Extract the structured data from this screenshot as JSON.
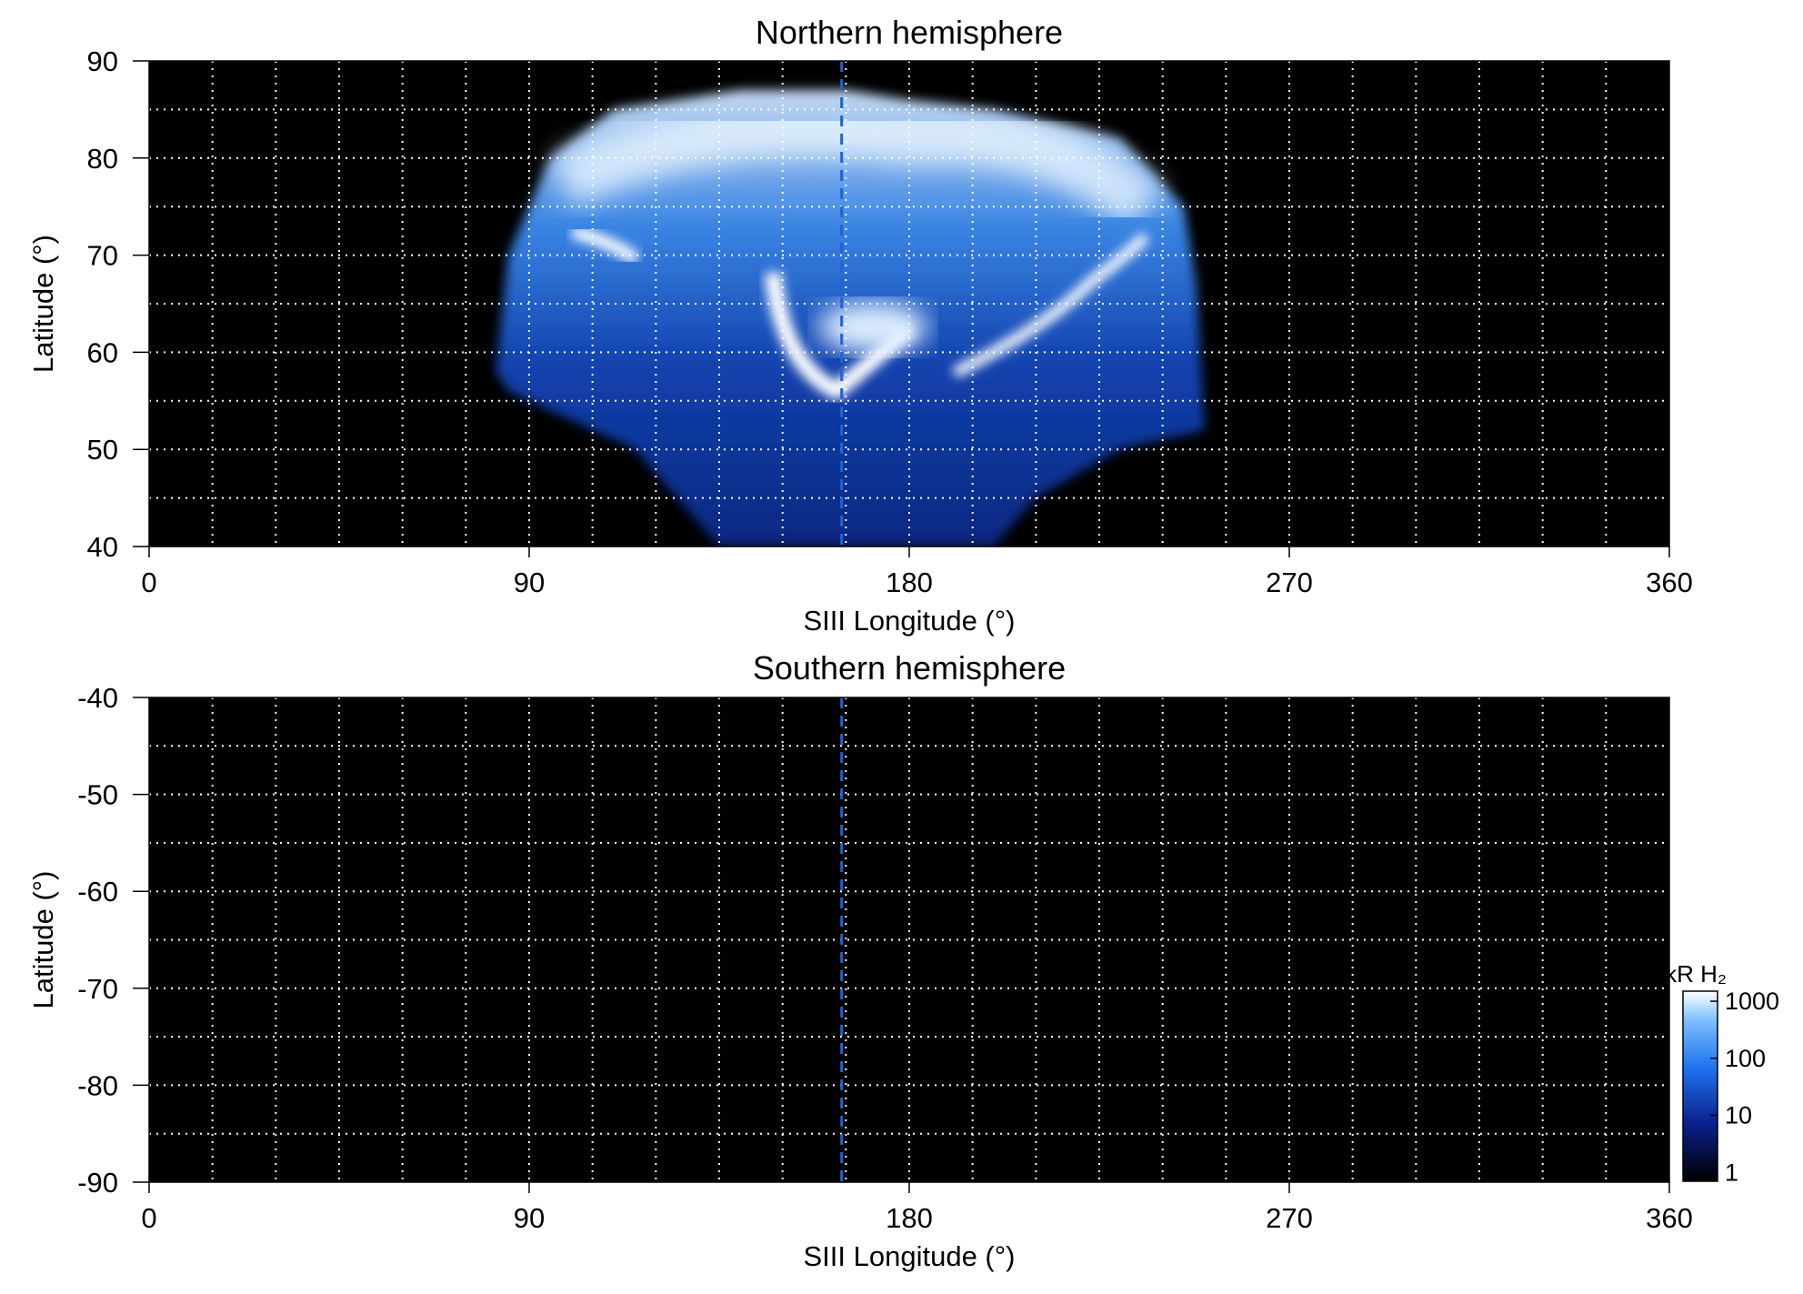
{
  "chart_data": [
    {
      "type": "heatmap",
      "title": "Northern hemisphere",
      "xlabel": "SIII Longitude (°)",
      "ylabel": "Latitude (°)",
      "xlim": [
        0,
        360
      ],
      "xticks": [
        0,
        90,
        180,
        270,
        360
      ],
      "ylim": [
        40,
        90
      ],
      "yticks": [
        40,
        50,
        60,
        70,
        80,
        90
      ],
      "xgrid": [
        15,
        30,
        45,
        60,
        75,
        90,
        105,
        120,
        135,
        150,
        165,
        180,
        195,
        210,
        225,
        240,
        255,
        270,
        285,
        300,
        315,
        330,
        345
      ],
      "ygrid": [
        45,
        50,
        55,
        60,
        65,
        70,
        75,
        80,
        85
      ],
      "vline_x": 164,
      "vline_color": "#1f63d6"
    },
    {
      "type": "heatmap",
      "title": "Southern hemisphere",
      "xlabel": "SIII Longitude (°)",
      "ylabel": "Latitude (°)",
      "xlim": [
        0,
        360
      ],
      "xticks": [
        0,
        90,
        180,
        270,
        360
      ],
      "ylim": [
        -90,
        -40
      ],
      "yticks": [
        -90,
        -80,
        -70,
        -60,
        -50,
        -40
      ],
      "xgrid": [
        15,
        30,
        45,
        60,
        75,
        90,
        105,
        120,
        135,
        150,
        165,
        180,
        195,
        210,
        225,
        240,
        255,
        270,
        285,
        300,
        315,
        330,
        345
      ],
      "ygrid": [
        -85,
        -80,
        -75,
        -70,
        -65,
        -60,
        -55,
        -50,
        -45
      ],
      "vline_x": 164,
      "vline_color": "#1f63d6",
      "colorbar": {
        "label": "kR H₂",
        "log": true,
        "ylim": [
          0.7,
          1500
        ],
        "yticks": [
          1,
          10,
          100,
          1000
        ]
      }
    }
  ]
}
